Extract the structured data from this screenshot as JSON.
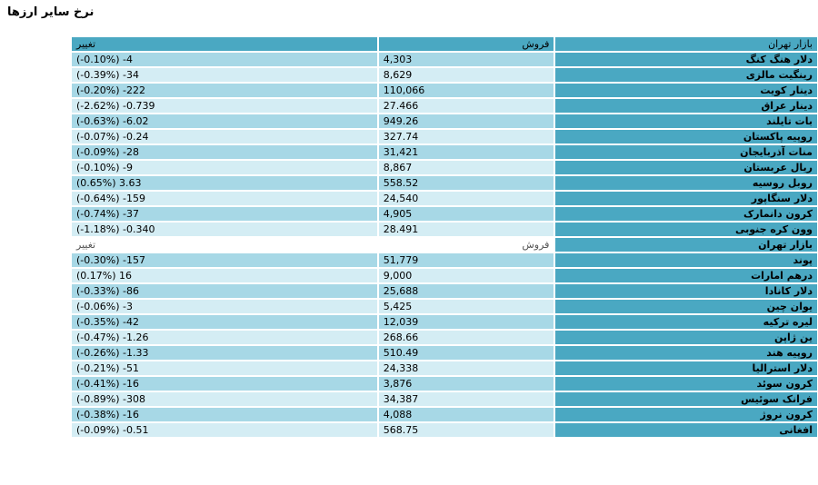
{
  "page": {
    "title": "نرخ سایر ارزها"
  },
  "table": {
    "header": {
      "market": "بازار تهران",
      "sell": "فروش",
      "change": "تغییر"
    },
    "rows_group1": [
      {
        "name": "دلار هنگ کنگ",
        "sell": "4,303",
        "change": "(-0.10%) -4"
      },
      {
        "name": "رینگیت مالزی",
        "sell": "8,629",
        "change": "(-0.39%) -34"
      },
      {
        "name": "دینار کویت",
        "sell": "110,066",
        "change": "(-0.20%) -222"
      },
      {
        "name": "دینار عراق",
        "sell": "27.466",
        "change": "(-2.62%) -0.739"
      },
      {
        "name": "بات تایلند",
        "sell": "949.26",
        "change": "(-0.63%) -6.02"
      },
      {
        "name": "روپیه پاکستان",
        "sell": "327.74",
        "change": "(-0.07%) -0.24"
      },
      {
        "name": "منات آذربایجان",
        "sell": "31,421",
        "change": "(-0.09%) -28"
      },
      {
        "name": "ریال عربستان",
        "sell": "8,867",
        "change": "(-0.10%) -9"
      },
      {
        "name": "روبل روسیه",
        "sell": "558.52",
        "change": "(0.65%) 3.63"
      },
      {
        "name": "دلار سنگاپور",
        "sell": "24,540",
        "change": "(-0.64%) -159"
      },
      {
        "name": "کرون دانمارک",
        "sell": "4,905",
        "change": "(-0.74%) -37"
      },
      {
        "name": "وون کره جنوبی",
        "sell": "28.491",
        "change": "(-1.18%) -0.340"
      }
    ],
    "sub_header": {
      "market": "بازار تهران",
      "sell": "فروش",
      "change": "تغییر"
    },
    "rows_group2": [
      {
        "name": "پوند",
        "sell": "51,779",
        "change": "(-0.30%) -157"
      },
      {
        "name": "درهم امارات",
        "sell": "9,000",
        "change": "(0.17%) 16"
      },
      {
        "name": "دلار کانادا",
        "sell": "25,688",
        "change": "(-0.33%) -86"
      },
      {
        "name": "یوان چین",
        "sell": "5,425",
        "change": "(-0.06%) -3"
      },
      {
        "name": "لیره ترکیه",
        "sell": "12,039",
        "change": "(-0.35%) -42"
      },
      {
        "name": "ین ژاپن",
        "sell": "268.66",
        "change": "(-0.47%) -1.26"
      },
      {
        "name": "روپیه هند",
        "sell": "510.49",
        "change": "(-0.26%) -1.33"
      },
      {
        "name": "دلار استرالیا",
        "sell": "24,338",
        "change": "(-0.21%) -51"
      },
      {
        "name": "کرون سوئد",
        "sell": "3,876",
        "change": "(-0.41%) -16"
      },
      {
        "name": "فرانک سوئیس",
        "sell": "34,387",
        "change": "(-0.89%) -308"
      },
      {
        "name": "کرون نروژ",
        "sell": "4,088",
        "change": "(-0.38%) -16"
      },
      {
        "name": "افغانی",
        "sell": "568.75",
        "change": "(-0.09%) -0.51"
      }
    ]
  },
  "colors": {
    "header_bg": "#4aa8c2",
    "row_odd_bg": "#a7d8e6",
    "row_even_bg": "#d4edf4"
  }
}
